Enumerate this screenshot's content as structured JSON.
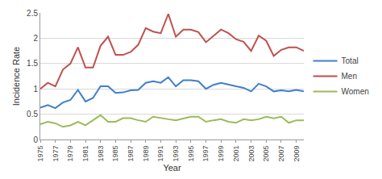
{
  "chart_data": {
    "type": "line",
    "x_label": "Year",
    "y_label": "Incidence Rate",
    "x": [
      1975,
      1976,
      1977,
      1978,
      1979,
      1980,
      1981,
      1982,
      1983,
      1984,
      1985,
      1986,
      1987,
      1988,
      1989,
      1990,
      1991,
      1992,
      1993,
      1994,
      1995,
      1996,
      1997,
      1998,
      1999,
      2000,
      2001,
      2002,
      2003,
      2004,
      2005,
      2006,
      2007,
      2008,
      2009,
      2010
    ],
    "series": [
      {
        "name": "Total",
        "color": "#3f7fcc",
        "values": [
          0.63,
          0.68,
          0.62,
          0.73,
          0.78,
          0.98,
          0.75,
          0.82,
          1.05,
          1.05,
          0.92,
          0.93,
          0.97,
          0.98,
          1.12,
          1.15,
          1.12,
          1.23,
          1.05,
          1.17,
          1.17,
          1.15,
          1.0,
          1.08,
          1.12,
          1.08,
          1.05,
          1.02,
          0.95,
          1.1,
          1.05,
          0.95,
          0.97,
          0.95,
          0.98,
          0.95
        ]
      },
      {
        "name": "Men",
        "color": "#c0504d",
        "values": [
          1.0,
          1.12,
          1.05,
          1.38,
          1.5,
          1.82,
          1.42,
          1.42,
          1.85,
          2.03,
          1.67,
          1.67,
          1.73,
          1.87,
          2.2,
          2.13,
          2.1,
          2.48,
          2.03,
          2.17,
          2.17,
          2.12,
          1.92,
          2.05,
          2.17,
          2.1,
          1.98,
          1.93,
          1.75,
          2.05,
          1.95,
          1.65,
          1.77,
          1.82,
          1.82,
          1.75
        ]
      },
      {
        "name": "Women",
        "color": "#9bbb59",
        "values": [
          0.3,
          0.35,
          0.32,
          0.25,
          0.28,
          0.35,
          0.28,
          0.38,
          0.48,
          0.35,
          0.35,
          0.42,
          0.42,
          0.38,
          0.35,
          0.45,
          0.42,
          0.4,
          0.38,
          0.42,
          0.45,
          0.45,
          0.35,
          0.38,
          0.4,
          0.35,
          0.33,
          0.4,
          0.38,
          0.4,
          0.45,
          0.42,
          0.45,
          0.33,
          0.38,
          0.38
        ]
      }
    ],
    "xlim": [
      1975,
      2010
    ],
    "xticks": [
      1975,
      1977,
      1979,
      1981,
      1983,
      1985,
      1987,
      1989,
      1991,
      1993,
      1995,
      1997,
      1999,
      2001,
      2003,
      2005,
      2007,
      2009
    ],
    "ylim": [
      0,
      2.5
    ],
    "yticks": [
      0,
      0.5,
      1,
      1.5,
      2,
      2.5
    ],
    "grid": true,
    "legend": "right"
  }
}
